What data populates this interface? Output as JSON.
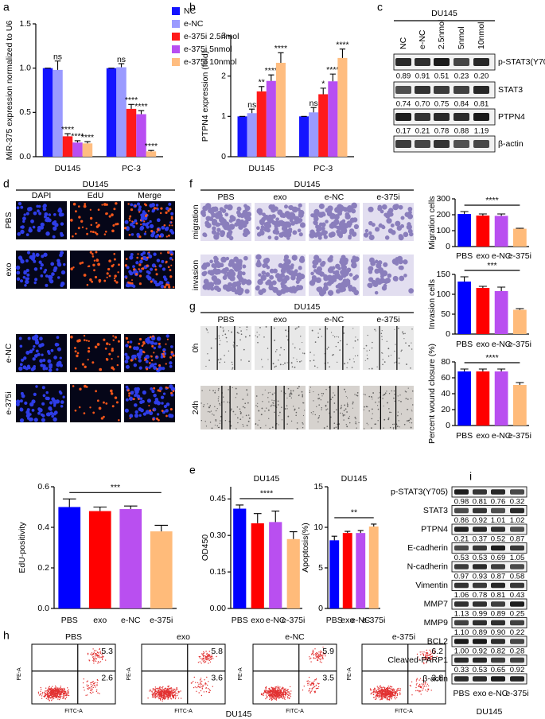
{
  "chart_data": [
    {
      "type": "bar",
      "label": "a",
      "y_label": "MiR-375 expression normalized to U6",
      "categories": [
        "DU145",
        "PC-3"
      ],
      "series": [
        {
          "name": "NC",
          "color": "#1414ff",
          "values": [
            1.0,
            1.0
          ],
          "errors": [
            0,
            0
          ]
        },
        {
          "name": "e-NC",
          "color": "#9a9aff",
          "values": [
            0.98,
            1.01
          ],
          "errors": [
            0.1,
            0.04
          ],
          "annotations": [
            "ns",
            "ns"
          ]
        },
        {
          "name": "e-375i 2.5nmol",
          "color": "#ff1a1a",
          "values": [
            0.23,
            0.54
          ],
          "errors": [
            0.03,
            0.05
          ],
          "annotations": [
            "****",
            "****"
          ]
        },
        {
          "name": "e-375i 5nmol",
          "color": "#b84ef2",
          "values": [
            0.16,
            0.48
          ],
          "errors": [
            0.02,
            0.04
          ],
          "annotations": [
            "****",
            "****"
          ]
        },
        {
          "name": "e-375i 10nmol",
          "color": "#ffbd80",
          "values": [
            0.15,
            0.06
          ],
          "errors": [
            0.02,
            0.01
          ],
          "annotations": [
            "****",
            "****"
          ]
        }
      ],
      "ylim": [
        0,
        1.5
      ],
      "yticks": [
        {
          "value": 0,
          "label": "0.0"
        },
        {
          "value": 0.5,
          "label": "0.5"
        },
        {
          "value": 1,
          "label": "1.0"
        },
        {
          "value": 1.5,
          "label": "1.5"
        }
      ],
      "legend": "top-right"
    },
    {
      "type": "bar",
      "label": "b",
      "y_label": "PTPN4 expression (fold)",
      "categories": [
        "DU145",
        "PC-3"
      ],
      "series": [
        {
          "color": "#1414ff",
          "values": [
            1.0,
            1.0
          ],
          "errors": [
            0,
            0
          ]
        },
        {
          "color": "#9a9aff",
          "values": [
            1.08,
            1.1
          ],
          "errors": [
            0.1,
            0.12
          ],
          "annotations": [
            "ns",
            "ns"
          ]
        },
        {
          "color": "#ff1a1a",
          "values": [
            1.62,
            1.55
          ],
          "errors": [
            0.12,
            0.15
          ],
          "annotations": [
            "**",
            "*"
          ]
        },
        {
          "color": "#b84ef2",
          "values": [
            1.88,
            1.87
          ],
          "errors": [
            0.15,
            0.18
          ],
          "annotations": [
            "****",
            "****"
          ]
        },
        {
          "color": "#ffbd80",
          "values": [
            2.33,
            2.45
          ],
          "errors": [
            0.25,
            0.22
          ],
          "annotations": [
            "****",
            "****"
          ]
        }
      ],
      "ylim": [
        0,
        3
      ],
      "yticks": [
        0,
        1,
        2,
        3
      ]
    },
    {
      "type": "bar",
      "y_label": "EdU-positivity",
      "categories": [
        "PBS",
        "exo",
        "e-NC",
        "e-375i"
      ],
      "values": [
        0.5,
        0.48,
        0.49,
        0.38
      ],
      "errors": [
        0.04,
        0.02,
        0.015,
        0.03
      ],
      "colors": [
        "#0000ff",
        "#ff0000",
        "#b94ff0",
        "#ffbb7a"
      ],
      "significance": "***",
      "ylim": [
        0,
        0.6
      ],
      "yticks": [
        {
          "value": 0,
          "label": "0.0"
        },
        {
          "value": 0.2,
          "label": "0.2"
        },
        {
          "value": 0.4,
          "label": "0.4"
        },
        {
          "value": 0.6,
          "label": "0.6"
        }
      ]
    },
    {
      "type": "bar",
      "label": "e",
      "title": "DU145",
      "y_label": "OD450",
      "categories": [
        "PBS",
        "exo",
        "e-NC",
        "e-375i"
      ],
      "values": [
        0.41,
        0.35,
        0.355,
        0.285
      ],
      "errors": [
        0.015,
        0.04,
        0.045,
        0.03
      ],
      "colors": [
        "#0000ff",
        "#ff0000",
        "#b94ff0",
        "#ffbb7a"
      ],
      "significance": "****",
      "ylim": [
        0,
        0.5
      ],
      "yticks": [
        {
          "value": 0,
          "label": "0.00"
        },
        {
          "value": 0.15,
          "label": "0.15"
        },
        {
          "value": 0.3,
          "label": "0.30"
        },
        {
          "value": 0.45,
          "label": "0.45"
        }
      ]
    },
    {
      "type": "bar",
      "title": "DU145",
      "y_label": "Apoptosis(%)",
      "categories": [
        "PBS",
        "exo",
        "e-NC",
        "e-375i"
      ],
      "values": [
        8.4,
        9.3,
        9.3,
        10.1
      ],
      "errors": [
        0.5,
        0.2,
        0.3,
        0.3
      ],
      "colors": [
        "#0000ff",
        "#ff0000",
        "#b94ff0",
        "#ffbb7a"
      ],
      "significance": "**",
      "ylim": [
        0,
        15
      ],
      "yticks": [
        0,
        5,
        10,
        15
      ]
    },
    {
      "type": "bar",
      "y_label": "Migration cells",
      "categories": [
        "PBS",
        "exo",
        "e-NC",
        "e-375i"
      ],
      "values": [
        205,
        195,
        193,
        112
      ],
      "errors": [
        15,
        10,
        12,
        3
      ],
      "colors": [
        "#0000ff",
        "#ff0000",
        "#b94ff0",
        "#ffbb7a"
      ],
      "significance": "****",
      "ylim": [
        0,
        300
      ],
      "yticks": [
        0,
        100,
        200,
        300
      ]
    },
    {
      "type": "bar",
      "y_label": "Invasion cells",
      "categories": [
        "PBS",
        "exo",
        "e-NC",
        "e-375i"
      ],
      "values": [
        132,
        116,
        108,
        61
      ],
      "errors": [
        12,
        4,
        10,
        3
      ],
      "colors": [
        "#0000ff",
        "#ff0000",
        "#b94ff0",
        "#ffbb7a"
      ],
      "significance": "***",
      "ylim": [
        0,
        150
      ],
      "yticks": [
        0,
        50,
        100,
        150
      ]
    },
    {
      "type": "bar",
      "y_label": "Percent wound closure (%)",
      "categories": [
        "PBS",
        "exo",
        "e-NC",
        "e-375i"
      ],
      "values": [
        68,
        68,
        68,
        51
      ],
      "errors": [
        3,
        3,
        3,
        3
      ],
      "colors": [
        "#0000ff",
        "#ff0000",
        "#b94ff0",
        "#ffbb7a"
      ],
      "significance": "****",
      "ylim": [
        0,
        80
      ],
      "yticks": [
        0,
        20,
        40,
        60,
        80
      ]
    }
  ],
  "blot_c": {
    "label": "c",
    "title": "DU145",
    "columns": [
      "NC",
      "e-NC",
      "2.5nmol",
      "5nmol",
      "10nmol"
    ],
    "rows": [
      {
        "name": "p-STAT3(Y705)",
        "values": [
          "0.89",
          "0.91",
          "0.51",
          "0.23",
          "0.20"
        ]
      },
      {
        "name": "STAT3",
        "values": [
          "0.74",
          "0.70",
          "0.75",
          "0.84",
          "0.81"
        ]
      },
      {
        "name": "PTPN4",
        "values": [
          "0.17",
          "0.21",
          "0.78",
          "0.88",
          "1.19"
        ]
      },
      {
        "name": "β-actin"
      }
    ]
  },
  "micrographs_d": {
    "label": "d",
    "title": "DU145",
    "columns": [
      "DAPI",
      "EdU",
      "Merge"
    ],
    "rows": [
      "PBS",
      "exo",
      "e-NC",
      "e-375i"
    ]
  },
  "transwell_f": {
    "label": "f",
    "title": "DU145",
    "columns": [
      "PBS",
      "exo",
      "e-NC",
      "e-375i"
    ],
    "rows": [
      "migration",
      "invasion"
    ]
  },
  "wound_g": {
    "label": "g",
    "title": "DU145",
    "columns": [
      "PBS",
      "exo",
      "e-NC",
      "e-375i"
    ],
    "rows": [
      "0h",
      "24h"
    ]
  },
  "flow_h": {
    "label": "h",
    "x_label": "FITC-A",
    "y_label": "PE-A",
    "footer": "DU145",
    "plots": [
      {
        "title": "PBS",
        "upper_right": 5.3,
        "lower_right": 2.6
      },
      {
        "title": "exo",
        "upper_right": 5.8,
        "lower_right": 3.6
      },
      {
        "title": "e-NC",
        "upper_right": 5.9,
        "lower_right": 3.5
      },
      {
        "title": "e-375i",
        "upper_right": 6.2,
        "lower_right": 3.8
      }
    ]
  },
  "blot_i": {
    "label": "i",
    "columns": [
      "PBS",
      "exo",
      "e-NC",
      "e-375i"
    ],
    "footer": "DU145",
    "rows": [
      {
        "name": "p-STAT3(Y705)",
        "values": [
          "0.98",
          "0.81",
          "0.76",
          "0.32"
        ]
      },
      {
        "name": "STAT3",
        "values": [
          "0.86",
          "0.92",
          "1.01",
          "1.02"
        ]
      },
      {
        "name": "PTPN4",
        "values": [
          "0.21",
          "0.37",
          "0.52",
          "0.87"
        ]
      },
      {
        "name": "E-cadherin",
        "values": [
          "0.53",
          "0.53",
          "0.69",
          "1.05"
        ]
      },
      {
        "name": "N-cadherin",
        "values": [
          "0.97",
          "0.93",
          "0.87",
          "0.58"
        ]
      },
      {
        "name": "Vimentin",
        "values": [
          "1.06",
          "0.78",
          "0.81",
          "0.43"
        ]
      },
      {
        "name": "MMP7",
        "values": [
          "1.13",
          "0.99",
          "0.89",
          "0.25"
        ]
      },
      {
        "name": "MMP9",
        "values": [
          "1.10",
          "0.89",
          "0.90",
          "0.22"
        ]
      },
      {
        "name": "BCL2",
        "values": [
          "1.00",
          "0.92",
          "0.82",
          "0.28"
        ]
      },
      {
        "name": "Cleaved-PARP1",
        "values": [
          "0.33",
          "0.53",
          "0.65",
          "0.92"
        ]
      },
      {
        "name": "β-actin"
      }
    ]
  }
}
